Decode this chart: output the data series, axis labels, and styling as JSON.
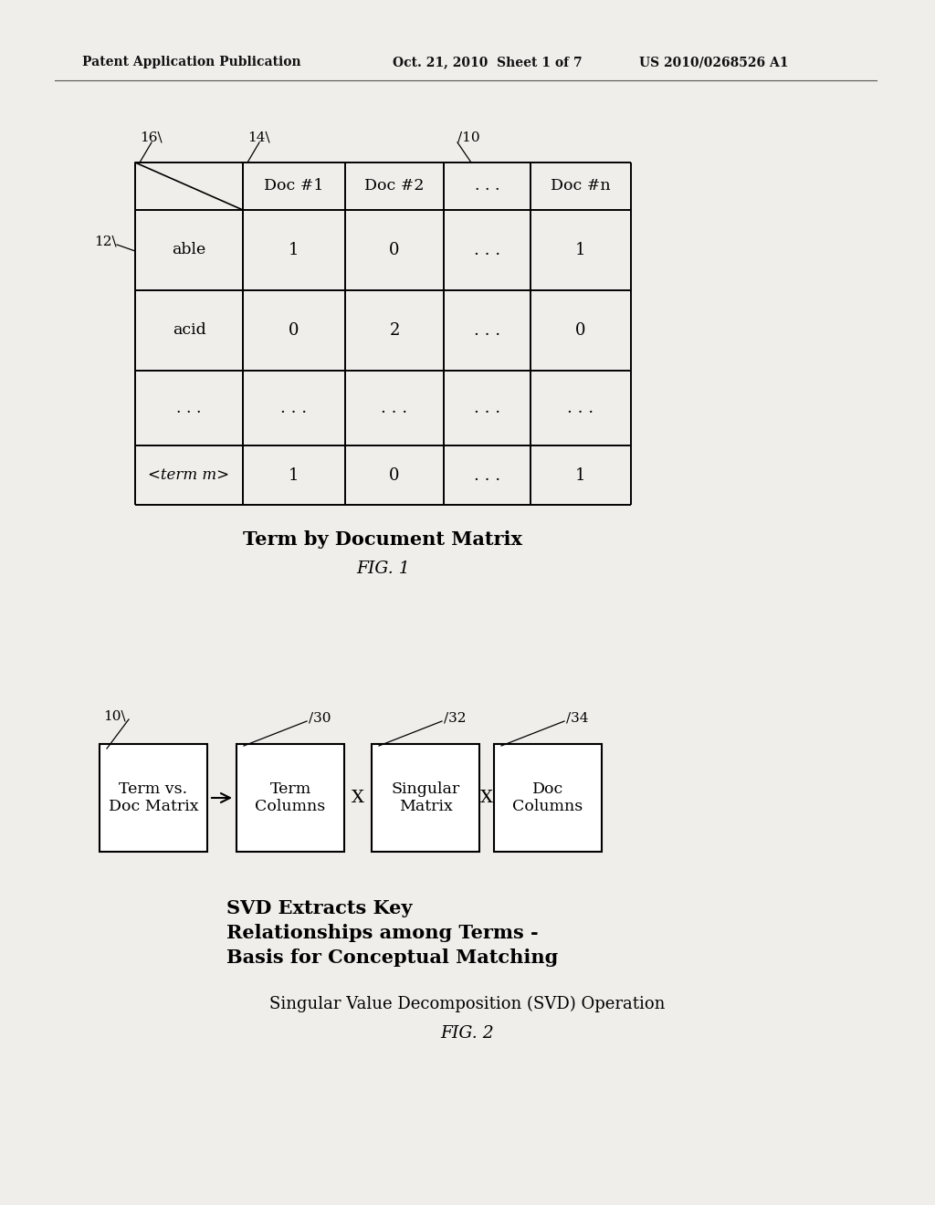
{
  "header_text_left": "Patent Application Publication",
  "header_text_mid": "Oct. 21, 2010  Sheet 1 of 7",
  "header_text_right": "US 2010/0268526 A1",
  "bg_color": "#f0eeeb",
  "fig1_title": "Term by Document Matrix",
  "fig1_subtitle": "FIG. 1",
  "table": {
    "col_labels": [
      "Doc #1",
      "Doc #2",
      ". . .",
      "Doc #n"
    ],
    "row_labels": [
      "able",
      "acid",
      ". . .",
      "<term m>"
    ],
    "data": [
      [
        "1",
        "0",
        ". . .",
        "1"
      ],
      [
        "0",
        "2",
        ". . .",
        "0"
      ],
      [
        ". . .",
        ". . .",
        ". . .",
        ". . ."
      ],
      [
        "1",
        "0",
        ". . .",
        "1"
      ]
    ]
  },
  "label_16": "16",
  "label_14": "14",
  "label_10": "10",
  "label_12": "12",
  "svd_labels": [
    "10",
    "30",
    "32",
    "34"
  ],
  "svd_boxes": [
    {
      "label": "Term vs.\nDoc Matrix"
    },
    {
      "label": "Term\nColumns"
    },
    {
      "label": "Singular\nMatrix"
    },
    {
      "label": "Doc\nColumns"
    }
  ],
  "svd_desc": "SVD Extracts Key\nRelationships among Terms -\nBasis for Conceptual Matching",
  "fig2_caption_line1": "Singular Value Decomposition (SVD) Operation",
  "fig2_subtitle": "FIG. 2"
}
